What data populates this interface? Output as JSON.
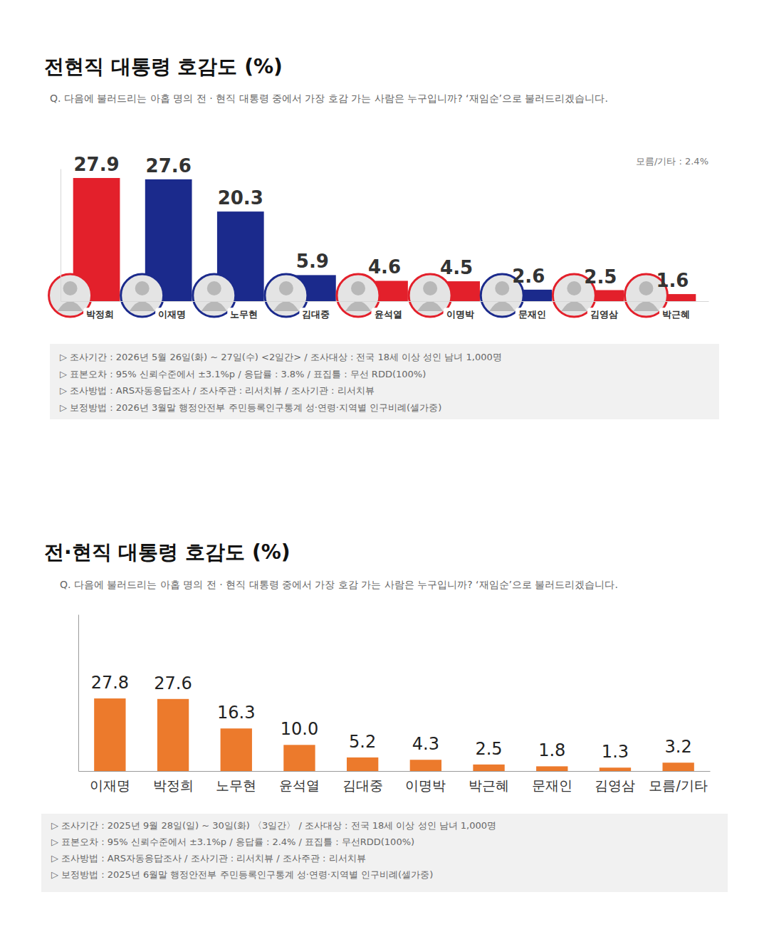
{
  "chart_data": [
    {
      "type": "bar",
      "title": "전현직 대통령 호감도 (%)",
      "subtitle": "Q. 다음에 불러드리는 아홉 명의 전 · 현직 대통령 중에서 가장 호감 가는 사람은 누구입니까?  ‘재임순’으로 불러드리겠습니다.",
      "categories": [
        "박정희",
        "이재명",
        "노무현",
        "김대중",
        "윤석열",
        "이명박",
        "문재인",
        "김영삼",
        "박근혜"
      ],
      "values": [
        27.9,
        27.6,
        20.3,
        5.9,
        4.6,
        4.5,
        2.6,
        2.5,
        1.6
      ],
      "colors": [
        "#e3202b",
        "#1b2a8c",
        "#1b2a8c",
        "#1b2a8c",
        "#e3202b",
        "#e3202b",
        "#1b2a8c",
        "#e3202b",
        "#e3202b"
      ],
      "ylim": [
        0,
        30
      ],
      "data_labels": true,
      "tick_labels": "x",
      "annotation": "모름/기타 : 2.4%",
      "footnotes": [
        "▷ 조사기간 : 2026년 5월 26일(화) ~ 27일(수) <2일간> / 조사대상 : 전국 18세 이상 성인 남녀 1,000명",
        "▷ 표본오차 : 95% 신뢰수준에서 ±3.1%p / 응답률 : 3.8% / 표집틀 : 무선 RDD(100%)",
        "▷ 조사방법 : ARS자동응답조사 / 조사주관 : 리서치뷰 / 조사기관 : 리서치뷰",
        "▷ 보정방법 : 2026년 3월말 행정안전부 주민등록인구통계 성·연령·지역별 인구비례(셀가중)"
      ]
    },
    {
      "type": "bar",
      "title": "전·현직 대통령 호감도 (%)",
      "subtitle": "Q. 다음에 불러드리는 아홉 명의 전 · 현직 대통령 중에서 가장 호감 가는 사람은 누구입니까? ‘재임순’으로 불러드리겠습니다.",
      "categories": [
        "이재명",
        "박정희",
        "노무현",
        "윤석열",
        "김대중",
        "이명박",
        "박근혜",
        "문재인",
        "김영삼",
        "모름/기타"
      ],
      "values": [
        27.8,
        27.6,
        16.3,
        10.0,
        5.2,
        4.3,
        2.5,
        1.8,
        1.3,
        3.2
      ],
      "value_labels": [
        "27.8",
        "27.6",
        "16.3",
        "10.0",
        "5.2",
        "4.3",
        "2.5",
        "1.8",
        "1.3",
        "3.2"
      ],
      "color": "#ec7a2c",
      "ylim": [
        0,
        60
      ],
      "data_labels": true,
      "tick_labels": "x",
      "footnotes": [
        "▷ 조사기간 : 2025년 9월 28일(일) ~ 30일(화) 〈3일간〉 / 조사대상 : 전국 18세 이상 성인 남녀 1,000명",
        "▷ 표본오차 : 95% 신뢰수준에서 ±3.1%p / 응답률 : 2.4% / 표집틀 : 무선RDD(100%)",
        "▷ 조사방법 : ARS자동응답조사 / 조사기관 : 리서치뷰 / 조사주관 : 리서치뷰",
        "▷ 보정방법 : 2025년 6월말 행정안전부 주민등록인구통계 성·연령·지역별 인구비례(셀가중)"
      ]
    }
  ]
}
